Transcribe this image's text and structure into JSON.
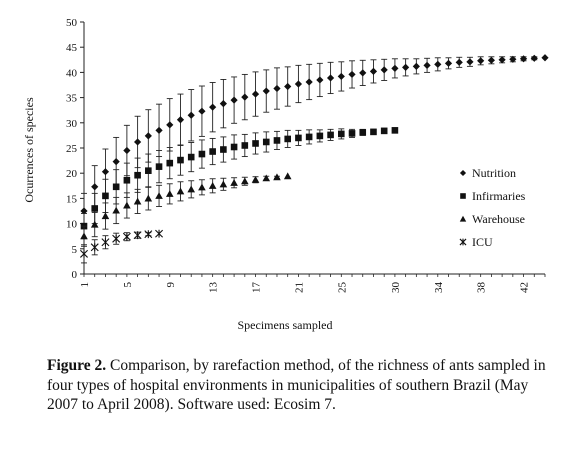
{
  "figure": {
    "caption_lead": "Figure 2.",
    "caption_text": " Comparison, by rarefaction method, of the richness of ants sampled in four types of hospital environments in municipalities of southern Brazil (May 2007 to April 2008). Software used: Ecosim 7."
  },
  "chart_data": {
    "type": "scatter",
    "xlabel": "Specimens sampled",
    "ylabel": "Ocurrences of species",
    "xlim": [
      1,
      44
    ],
    "ylim": [
      0,
      50
    ],
    "x_ticks": [
      1,
      5,
      9,
      13,
      17,
      21,
      25,
      30,
      34,
      38,
      42
    ],
    "y_ticks": [
      0,
      5,
      10,
      15,
      20,
      25,
      30,
      35,
      40,
      45,
      50
    ],
    "grid": false,
    "legend_position": "right",
    "error_bars": true,
    "series": [
      {
        "name": "Nutrition",
        "marker": "diamond",
        "x": [
          1,
          2,
          3,
          4,
          5,
          6,
          7,
          8,
          9,
          10,
          11,
          12,
          13,
          14,
          15,
          16,
          17,
          18,
          19,
          20,
          21,
          22,
          23,
          24,
          25,
          26,
          27,
          28,
          29,
          30,
          31,
          32,
          33,
          34,
          35,
          36,
          37,
          38,
          39,
          40,
          41,
          42,
          43,
          44
        ],
        "y": [
          12.5,
          17.3,
          20.3,
          22.3,
          24.5,
          26.2,
          27.4,
          28.5,
          29.6,
          30.6,
          31.5,
          32.3,
          33.1,
          33.8,
          34.5,
          35.1,
          35.7,
          36.3,
          36.8,
          37.2,
          37.7,
          38.1,
          38.5,
          38.9,
          39.2,
          39.6,
          39.9,
          40.2,
          40.5,
          40.8,
          41.0,
          41.2,
          41.4,
          41.6,
          41.8,
          42.0,
          42.1,
          42.3,
          42.4,
          42.5,
          42.6,
          42.7,
          42.8,
          42.9
        ],
        "error": [
          3.5,
          4.2,
          4.5,
          4.8,
          5.0,
          5.1,
          5.2,
          5.2,
          5.2,
          5.1,
          5.1,
          5.0,
          4.9,
          4.8,
          4.6,
          4.5,
          4.4,
          4.2,
          4.1,
          3.9,
          3.7,
          3.5,
          3.3,
          3.1,
          2.9,
          2.7,
          2.5,
          2.3,
          2.1,
          1.9,
          1.7,
          1.5,
          1.4,
          1.3,
          1.1,
          1.0,
          0.9,
          0.8,
          0.7,
          0.6,
          0.5,
          0.4,
          0.3,
          0.0
        ]
      },
      {
        "name": "Infirmaries",
        "marker": "square",
        "x": [
          1,
          2,
          3,
          4,
          5,
          6,
          7,
          8,
          9,
          10,
          11,
          12,
          13,
          14,
          15,
          16,
          17,
          18,
          19,
          20,
          21,
          22,
          23,
          24,
          25,
          26,
          27,
          28,
          29,
          30
        ],
        "y": [
          9.5,
          13.0,
          15.5,
          17.3,
          18.6,
          19.6,
          20.5,
          21.3,
          22.0,
          22.6,
          23.2,
          23.8,
          24.3,
          24.7,
          25.2,
          25.5,
          25.9,
          26.2,
          26.5,
          26.8,
          27.0,
          27.2,
          27.4,
          27.6,
          27.8,
          27.9,
          28.1,
          28.2,
          28.4,
          28.5
        ],
        "error": [
          2.5,
          3.0,
          3.3,
          3.4,
          3.4,
          3.4,
          3.3,
          3.2,
          3.1,
          3.0,
          2.9,
          2.8,
          2.6,
          2.5,
          2.4,
          2.2,
          2.1,
          2.0,
          1.8,
          1.7,
          1.5,
          1.4,
          1.2,
          1.1,
          1.0,
          0.8,
          0.6,
          0.5,
          0.3,
          0.0
        ]
      },
      {
        "name": "Warehouse",
        "marker": "triangle",
        "x": [
          1,
          2,
          3,
          4,
          5,
          6,
          7,
          8,
          9,
          10,
          11,
          12,
          13,
          14,
          15,
          16,
          17,
          18,
          19,
          20
        ],
        "y": [
          7.5,
          9.8,
          11.5,
          12.6,
          13.6,
          14.4,
          15.0,
          15.5,
          15.9,
          16.4,
          16.8,
          17.2,
          17.5,
          17.8,
          18.1,
          18.4,
          18.7,
          19.0,
          19.2,
          19.4
        ],
        "error": [
          2.0,
          2.4,
          2.6,
          2.6,
          2.5,
          2.4,
          2.3,
          2.1,
          2.0,
          1.9,
          1.7,
          1.5,
          1.4,
          1.2,
          1.0,
          0.8,
          0.6,
          0.4,
          0.2,
          0.0
        ]
      },
      {
        "name": "ICU",
        "marker": "asterisk",
        "x": [
          1,
          2,
          3,
          4,
          5,
          6,
          7,
          8
        ],
        "y": [
          4.0,
          5.3,
          6.3,
          7.0,
          7.4,
          7.7,
          7.9,
          8.0
        ],
        "error": [
          1.8,
          1.5,
          1.3,
          1.1,
          0.8,
          0.6,
          0.3,
          0.0
        ]
      }
    ]
  }
}
